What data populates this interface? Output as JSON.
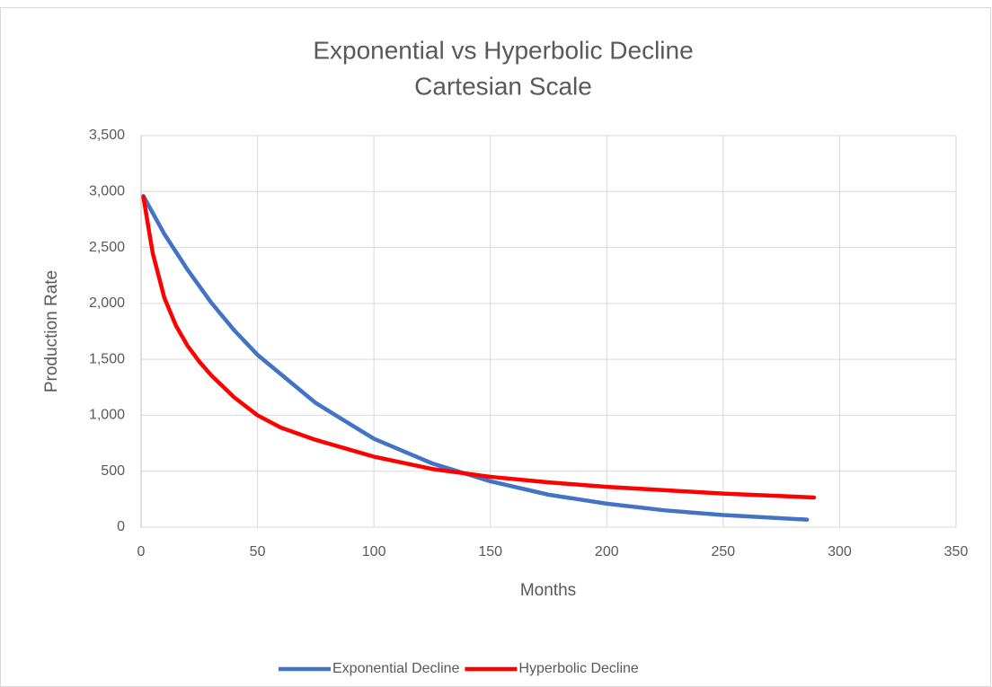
{
  "chart_data": {
    "type": "line",
    "title": "Exponential vs Hyperbolic Decline",
    "subtitle": "Cartesian Scale",
    "xlabel": "Months",
    "ylabel": "Production Rate",
    "xlim": [
      0,
      350
    ],
    "xticks": [
      0,
      50,
      100,
      150,
      200,
      250,
      300,
      350
    ],
    "ylim": [
      0,
      3500
    ],
    "yticks": [
      0,
      500,
      {
        "value": 1000,
        "label": "1,000"
      },
      {
        "value": 1500,
        "label": "1,500"
      },
      {
        "value": 2000,
        "label": "2,000"
      },
      {
        "value": 2500,
        "label": "2,500"
      },
      {
        "value": 3000,
        "label": "3,000"
      },
      {
        "value": 3500,
        "label": "3,500"
      }
    ],
    "grid": true,
    "legend": "bottom",
    "series": [
      {
        "name": "Exponential Decline",
        "color": "#4472c4",
        "x": [
          1,
          10,
          20,
          30,
          40,
          50,
          75,
          100,
          125,
          150,
          175,
          200,
          225,
          250,
          286
        ],
        "values": [
          2960,
          2620,
          2300,
          2010,
          1760,
          1540,
          1110,
          790,
          570,
          410,
          290,
          210,
          150,
          108,
          67
        ]
      },
      {
        "name": "Hyperbolic Decline",
        "color": "#ff0000",
        "x": [
          1,
          5,
          10,
          15,
          20,
          25,
          30,
          40,
          50,
          60,
          75,
          100,
          125,
          150,
          175,
          200,
          225,
          250,
          289
        ],
        "values": [
          2950,
          2450,
          2050,
          1800,
          1620,
          1480,
          1360,
          1160,
          1000,
          890,
          780,
          630,
          520,
          450,
          400,
          360,
          330,
          300,
          265
        ]
      }
    ]
  }
}
